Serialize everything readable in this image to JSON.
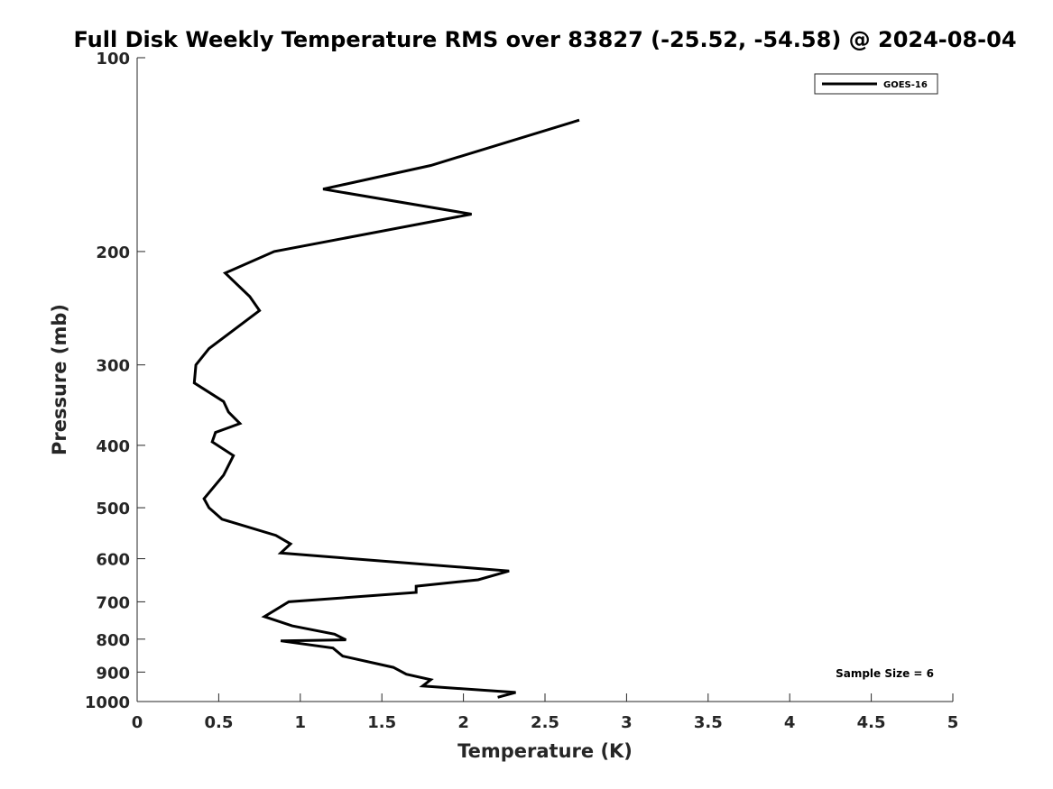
{
  "chart_data": {
    "type": "line",
    "title": "Full Disk Weekly Temperature RMS over 83827 (-25.52, -54.58) @ 2024-08-04",
    "xlabel": "Temperature (K)",
    "ylabel": "Pressure (mb)",
    "xlim": [
      0,
      5
    ],
    "ylim": [
      100,
      1000
    ],
    "y_scale": "log",
    "y_direction": "reversed",
    "x_ticks": [
      "0",
      "0.5",
      "1",
      "1.5",
      "2",
      "2.5",
      "3",
      "3.5",
      "4",
      "4.5",
      "5"
    ],
    "y_ticks": [
      "100",
      "200",
      "300",
      "400",
      "500",
      "600",
      "700",
      "800",
      "900",
      "1000"
    ],
    "grid": false,
    "legend": {
      "placement": "top-right",
      "entries": [
        "GOES-16"
      ]
    },
    "annotation": "Sample Size = 6",
    "line_color": "#000000",
    "series": [
      {
        "name": "GOES-16",
        "x": [
          2.71,
          1.8,
          1.14,
          2.05,
          0.84,
          0.54,
          0.69,
          0.75,
          0.44,
          0.36,
          0.35,
          0.53,
          0.56,
          0.63,
          0.48,
          0.46,
          0.59,
          0.53,
          0.41,
          0.44,
          0.52,
          0.85,
          0.94,
          0.88,
          1.32,
          2.28,
          2.09,
          1.71,
          1.71,
          0.93,
          0.78,
          0.95,
          1.21,
          1.28,
          0.88,
          1.2,
          1.26,
          1.57,
          1.65,
          1.8,
          1.75,
          2.32,
          2.21
        ],
        "y": [
          125,
          147,
          160,
          175,
          200,
          216,
          235,
          247,
          283,
          300,
          320,
          342,
          355,
          370,
          382,
          395,
          415,
          445,
          484,
          500,
          521,
          552,
          569,
          588,
          600,
          627,
          647,
          662,
          677,
          700,
          738,
          763,
          786,
          802,
          805,
          826,
          850,
          885,
          907,
          925,
          946,
          968,
          985
        ]
      }
    ]
  }
}
